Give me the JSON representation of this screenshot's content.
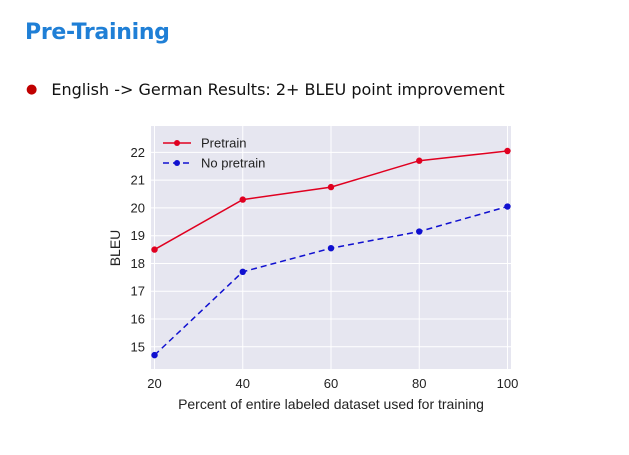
{
  "slide": {
    "title": "Pre-Training",
    "bullet": "English -> German Results: 2+ BLEU point improvement"
  },
  "chart_data": {
    "type": "line",
    "x": [
      20,
      40,
      60,
      80,
      100
    ],
    "series": [
      {
        "name": "Pretrain",
        "values": [
          18.5,
          20.3,
          20.75,
          21.7,
          22.05
        ],
        "color": "#e00020",
        "style": "solid"
      },
      {
        "name": "No pretrain",
        "values": [
          14.7,
          17.7,
          18.55,
          19.15,
          20.05
        ],
        "color": "#1010d0",
        "style": "dashed"
      }
    ],
    "xticks": [
      "20",
      "40",
      "60",
      "80",
      "100"
    ],
    "yticks": [
      "15",
      "16",
      "17",
      "18",
      "19",
      "20",
      "21",
      "22"
    ],
    "xlabel": "Percent of entire labeled dataset used for training",
    "ylabel": "BLEU",
    "xlim": [
      19.2,
      100.8
    ],
    "ylim": [
      14.2,
      22.95
    ],
    "grid": true,
    "legend_position": "top-left",
    "background_color": "#e6e6f0",
    "grid_color": "#ffffff"
  }
}
